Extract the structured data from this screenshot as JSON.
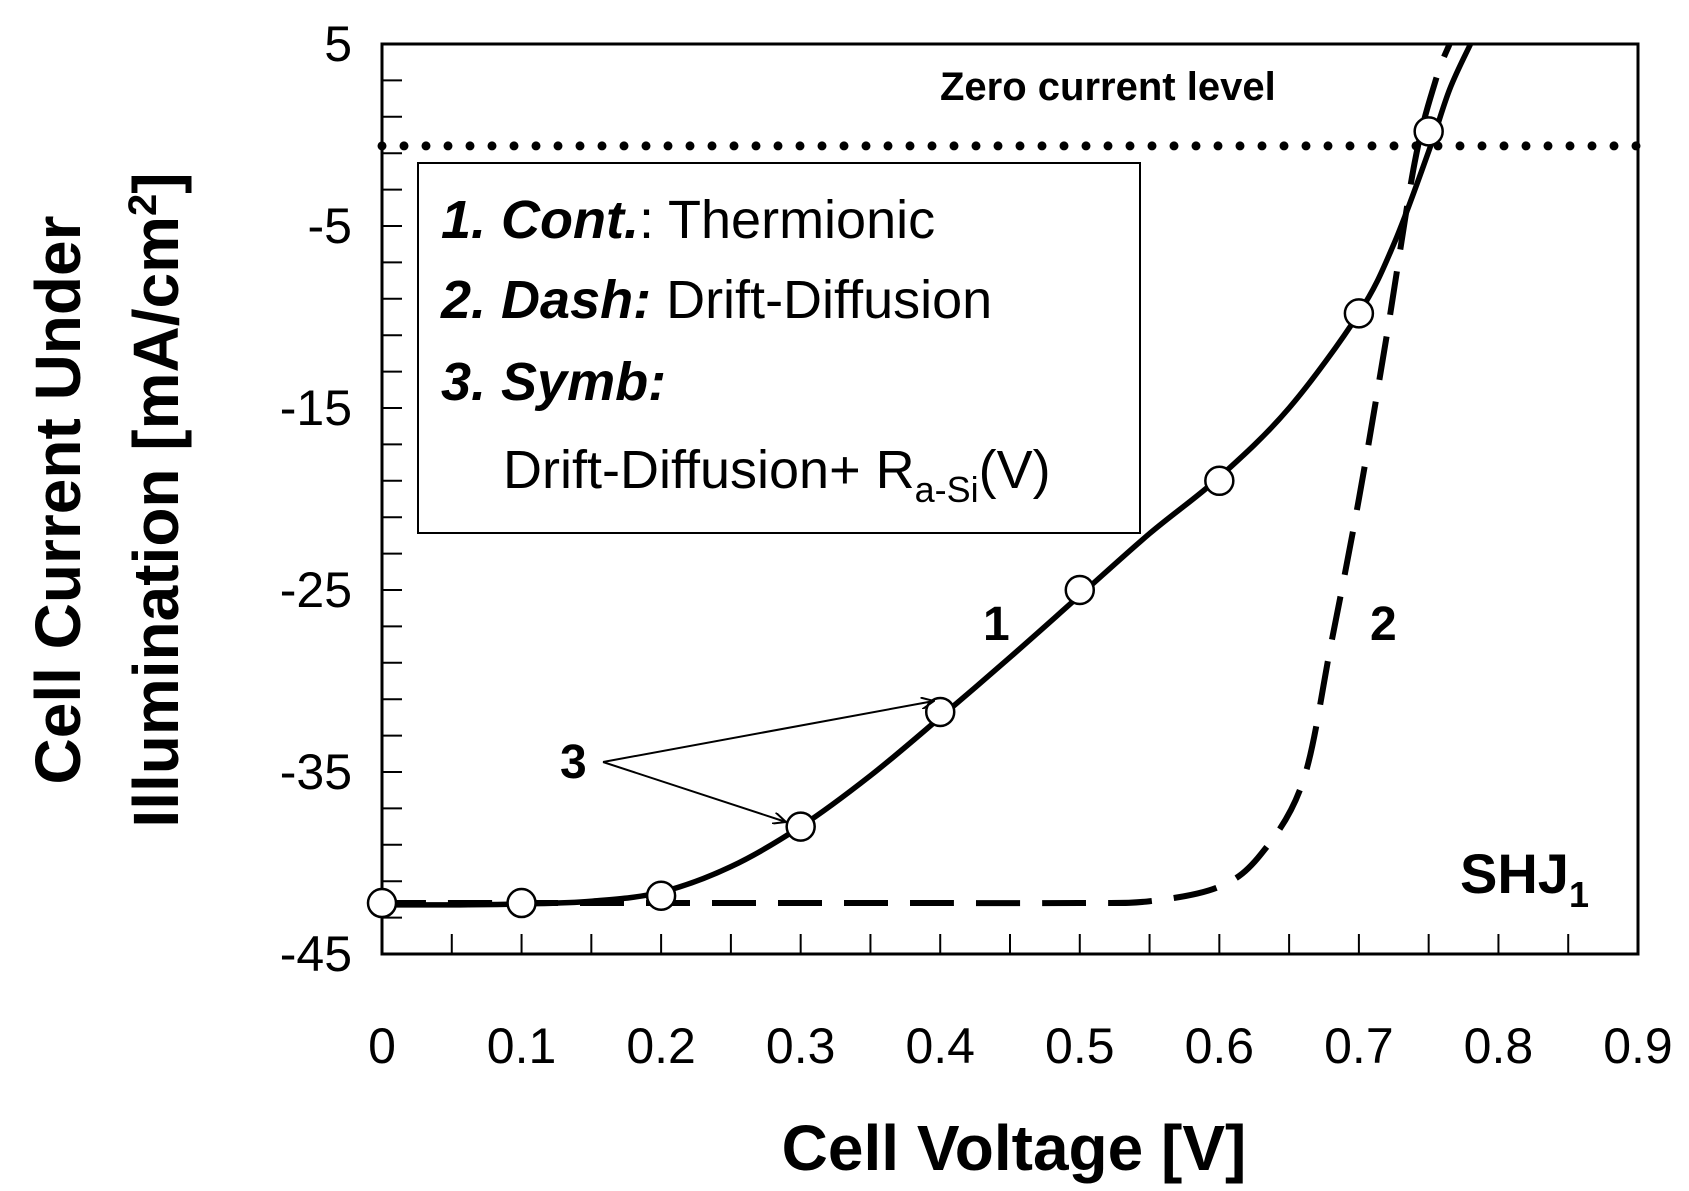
{
  "chart_data": {
    "type": "line",
    "title": "",
    "xlabel": "Cell Voltage [V]",
    "ylabel": {
      "line1": "Cell Current Under",
      "line2_prefix": "Illumination [mA/cm",
      "line2_sup": "2",
      "line2_suffix": "]"
    },
    "xlim": [
      0,
      0.9
    ],
    "ylim": [
      -45,
      5
    ],
    "x_ticks": [
      0,
      0.1,
      0.2,
      0.3,
      0.4,
      0.5,
      0.6,
      0.7,
      0.8,
      0.9
    ],
    "x_tick_labels": [
      "0",
      "0.1",
      "0.2",
      "0.3",
      "0.4",
      "0.5",
      "0.6",
      "0.7",
      "0.8",
      "0.9"
    ],
    "y_ticks": [
      5,
      -5,
      -15,
      -25,
      -35,
      -45
    ],
    "y_tick_labels": [
      "5",
      "-5",
      "-15",
      "-25",
      "-35",
      "-45"
    ],
    "y_minor_step": 2,
    "x_minor_step": 0.05,
    "grid": false,
    "series": [
      {
        "name": "1. Cont.: Thermionic",
        "style": "solid",
        "x": [
          0,
          0.05,
          0.1,
          0.15,
          0.2,
          0.25,
          0.3,
          0.35,
          0.4,
          0.45,
          0.5,
          0.55,
          0.6,
          0.65,
          0.7,
          0.725,
          0.75,
          0.765,
          0.78
        ],
        "y": [
          -42.3,
          -42.3,
          -42.25,
          -42.1,
          -41.6,
          -40.2,
          -38.0,
          -35.2,
          -32.0,
          -28.7,
          -25.3,
          -21.9,
          -18.8,
          -15.0,
          -9.8,
          -6.0,
          -0.9,
          2.5,
          5.0
        ]
      },
      {
        "name": "2. Dash: Drift-Diffusion",
        "style": "dashed",
        "x": [
          0,
          0.1,
          0.2,
          0.3,
          0.4,
          0.5,
          0.55,
          0.6,
          0.63,
          0.66,
          0.68,
          0.7,
          0.72,
          0.74,
          0.755,
          0.765
        ],
        "y": [
          -42.2,
          -42.2,
          -42.2,
          -42.2,
          -42.2,
          -42.2,
          -42.1,
          -41.3,
          -39.5,
          -35.5,
          -28.0,
          -20.0,
          -11.0,
          -1.5,
          3.0,
          5.0
        ]
      },
      {
        "name": "3. Symb: Drift-Diffusion+ Ra-Si(V)",
        "style": "markers",
        "x": [
          0,
          0.1,
          0.2,
          0.3,
          0.4,
          0.5,
          0.6,
          0.7,
          0.75
        ],
        "y": [
          -42.2,
          -42.2,
          -41.8,
          -38.0,
          -31.7,
          -25.0,
          -19.0,
          -9.8,
          0.2
        ]
      }
    ],
    "reference_line": {
      "y": -0.6,
      "label": "Zero current level"
    },
    "legend": {
      "line1_bold": "1. Cont.",
      "line1_text": ": Thermionic",
      "line2_bold": "2. Dash:",
      "line2_text": " Drift-Diffusion",
      "line3_bold": "3. Symb:",
      "line4_text": "Drift-Diffusion+ R",
      "line4_sub": "a-Si",
      "line4_suffix": "(V)"
    },
    "annotations": {
      "curve1_label": "1",
      "curve2_label": "2",
      "symbols_label": "3",
      "device_label": "SHJ",
      "device_sub": "1"
    }
  }
}
